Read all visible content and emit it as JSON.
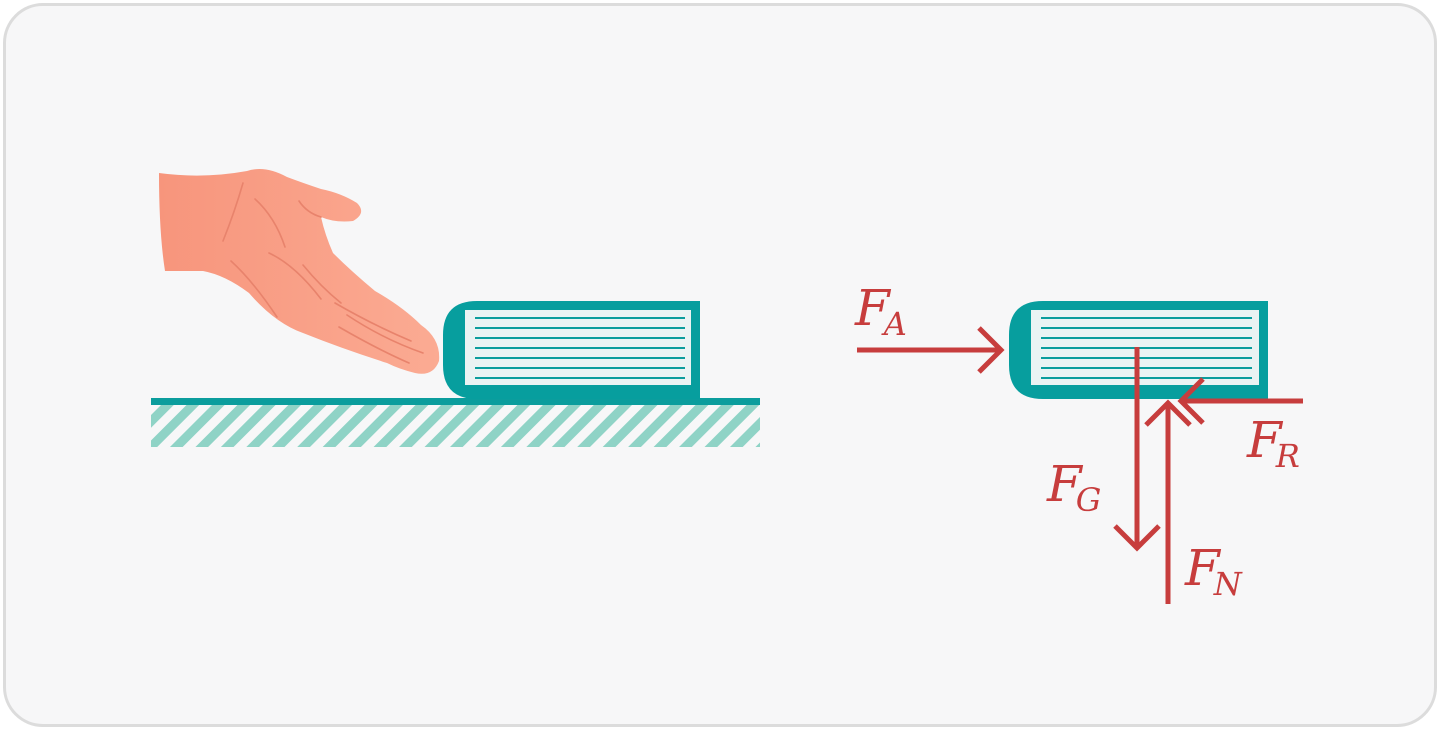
{
  "colors": {
    "book": "#079e9e",
    "pages": "#eaf3f3",
    "page_lines": "#0b9d9d",
    "ground": "#0b9d9d",
    "hatch": "#8fd3c6",
    "hand": "#f9a58b",
    "hand_shadow": "#e8836c",
    "force": "#c73d3d",
    "card_bg": "#f7f7f8",
    "card_border": "#dcdcdc"
  },
  "forces": {
    "applied": {
      "symbol": "F",
      "subscript": "A",
      "direction": "right"
    },
    "friction": {
      "symbol": "F",
      "subscript": "R",
      "direction": "left"
    },
    "gravity": {
      "symbol": "F",
      "subscript": "G",
      "direction": "down"
    },
    "normal": {
      "symbol": "F",
      "subscript": "N",
      "direction": "up"
    }
  },
  "icons": {
    "hand": "hand-icon",
    "book": "book-icon",
    "ground": "ground-surface"
  }
}
